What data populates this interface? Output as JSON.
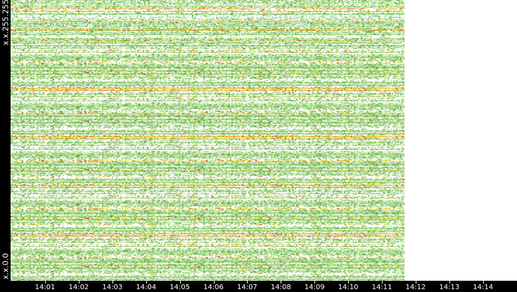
{
  "chart_data": {
    "type": "heatmap",
    "title": "",
    "xlabel": "",
    "ylabel": "",
    "x_ticks": [
      "14:01",
      "14:02",
      "14:03",
      "14:04",
      "14:05",
      "14:06",
      "14:07",
      "14:08",
      "14:09",
      "14:10",
      "14:11",
      "14:12",
      "14:13",
      "14:14"
    ],
    "x_range": [
      "14:00",
      "14:14:30"
    ],
    "data_end": "14:11:40",
    "y_labels": {
      "top": "x.x.255.255",
      "bottom": "x.x.0.0"
    },
    "color_scale": [
      "#ffffff",
      "#b5dc9a",
      "#8cc86a",
      "#5fae3a",
      "#3d8a25",
      "#f0d000",
      "#ffa500",
      "#ff3020"
    ],
    "background": "#ffffff",
    "axis_background": "#000000",
    "grid": false,
    "legend": "none"
  }
}
